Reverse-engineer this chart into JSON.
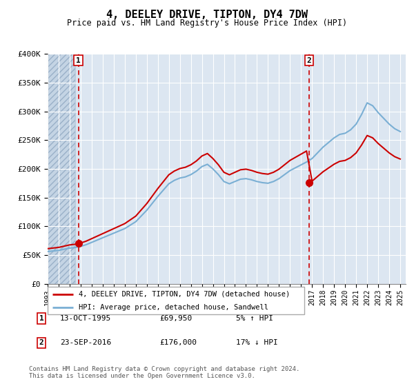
{
  "title": "4, DEELEY DRIVE, TIPTON, DY4 7DW",
  "subtitle": "Price paid vs. HM Land Registry's House Price Index (HPI)",
  "ylim": [
    0,
    400000
  ],
  "yticks": [
    0,
    50000,
    100000,
    150000,
    200000,
    250000,
    300000,
    350000,
    400000
  ],
  "ytick_labels": [
    "£0",
    "£50K",
    "£100K",
    "£150K",
    "£200K",
    "£250K",
    "£300K",
    "£350K",
    "£400K"
  ],
  "legend_line1": "4, DEELEY DRIVE, TIPTON, DY4 7DW (detached house)",
  "legend_line2": "HPI: Average price, detached house, Sandwell",
  "transaction1_date": "13-OCT-1995",
  "transaction1_price": "£69,950",
  "transaction1_hpi": "5% ↑ HPI",
  "transaction1_year": 1995.79,
  "transaction1_value": 69950,
  "transaction2_date": "23-SEP-2016",
  "transaction2_price": "£176,000",
  "transaction2_hpi": "17% ↓ HPI",
  "transaction2_year": 2016.73,
  "transaction2_value": 176000,
  "footer": "Contains HM Land Registry data © Crown copyright and database right 2024.\nThis data is licensed under the Open Government Licence v3.0.",
  "line_color_red": "#cc0000",
  "line_color_blue": "#7aafd4",
  "bg_plot": "#dce6f1",
  "bg_hatch": "#c4d4e4",
  "grid_color": "#ffffff",
  "vline_color": "#cc0000",
  "xlim_start": 1993,
  "xlim_end": 2025.5,
  "hpi_years": [
    1993.0,
    1993.5,
    1994.0,
    1994.5,
    1995.0,
    1995.5,
    1996.0,
    1996.5,
    1997.0,
    1997.5,
    1998.0,
    1998.5,
    1999.0,
    1999.5,
    2000.0,
    2000.5,
    2001.0,
    2001.5,
    2002.0,
    2002.5,
    2003.0,
    2003.5,
    2004.0,
    2004.5,
    2005.0,
    2005.5,
    2006.0,
    2006.5,
    2007.0,
    2007.5,
    2008.0,
    2008.5,
    2009.0,
    2009.5,
    2010.0,
    2010.5,
    2011.0,
    2011.5,
    2012.0,
    2012.5,
    2013.0,
    2013.5,
    2014.0,
    2014.5,
    2015.0,
    2015.5,
    2016.0,
    2016.5,
    2017.0,
    2017.5,
    2018.0,
    2018.5,
    2019.0,
    2019.5,
    2020.0,
    2020.5,
    2021.0,
    2021.5,
    2022.0,
    2022.5,
    2023.0,
    2023.5,
    2024.0,
    2024.5,
    2025.0
  ],
  "hpi_values": [
    56000,
    57000,
    58000,
    60000,
    62000,
    63000,
    65000,
    68000,
    72000,
    76000,
    80000,
    84000,
    88000,
    92000,
    96000,
    102000,
    108000,
    118000,
    128000,
    140000,
    152000,
    163000,
    174000,
    180000,
    184000,
    186000,
    190000,
    196000,
    204000,
    208000,
    200000,
    190000,
    178000,
    174000,
    178000,
    182000,
    183000,
    181000,
    178000,
    176000,
    175000,
    178000,
    183000,
    190000,
    197000,
    202000,
    207000,
    212000,
    218000,
    228000,
    238000,
    246000,
    254000,
    260000,
    262000,
    268000,
    278000,
    295000,
    315000,
    310000,
    298000,
    288000,
    278000,
    270000,
    265000
  ]
}
